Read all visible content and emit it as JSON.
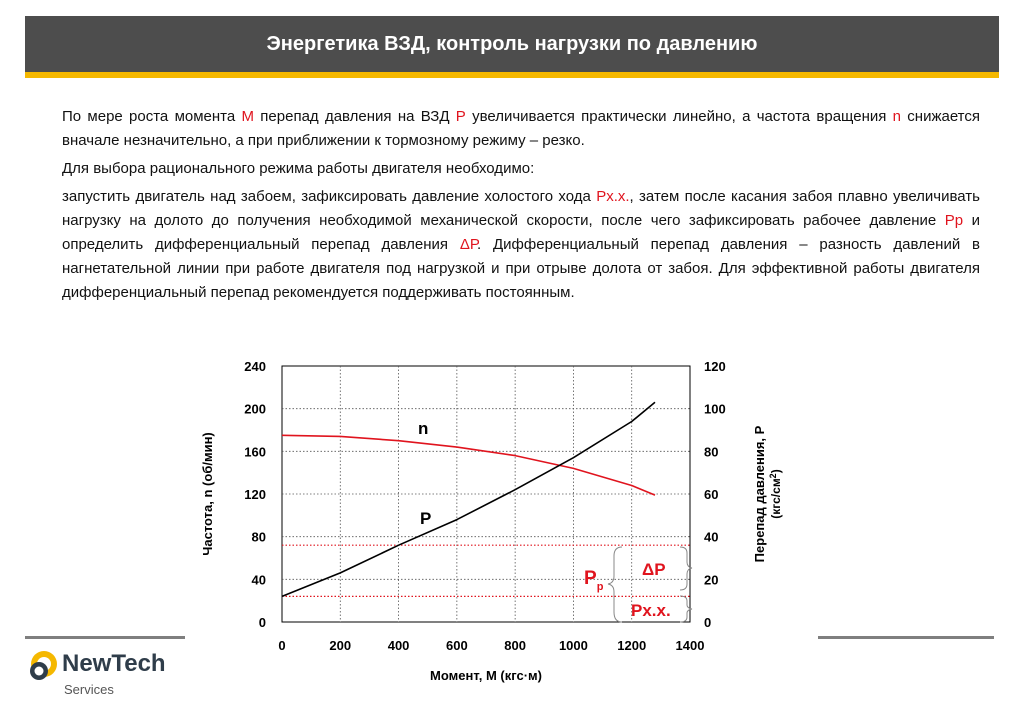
{
  "slide": {
    "title": "Энергетика ВЗД, контроль  нагрузки по давлению"
  },
  "body": {
    "p1": {
      "a": "По мере роста момента ",
      "b": "М",
      "c": " перепад давления на ВЗД ",
      "d": "Р",
      "e": " увеличивается практически линейно, а частота вращения ",
      "f": "n",
      "g": " снижается вначале незначительно, а при приближении к тормозному режиму – резко."
    },
    "p2": "Для выбора рационального режима работы двигателя необходимо:",
    "p3": {
      "a": "запустить двигатель над забоем, зафиксировать давление холостого хода ",
      "b": "Рх.х.",
      "c": ", затем после касания забоя плавно увеличивать нагрузку на долото до получения необходимой механической скорости, после чего зафиксировать рабочее давление ",
      "d": "Рр",
      "e": " и определить дифференциальный перепад давления ",
      "f": "ΔР",
      "g": ". Дифференциальный перепад давления – разность давлений в нагнетательной линии при работе двигателя под нагрузкой и при отрыве долота от забоя. Для эффективной работы двигателя дифференциальный перепад рекомендуется поддерживать постоянным."
    }
  },
  "logo": {
    "name": "NewTech",
    "sub": "Services"
  },
  "colors": {
    "title_bg": "#4d4d4d",
    "accent": "#f5b800",
    "red": "#e0141e"
  },
  "chart_data": {
    "type": "line",
    "xlabel": "Момент, М (кгс·м)",
    "ylabel_left": "Частота, n (об/мин)",
    "ylabel_right_line1": "Перепад давления, Р",
    "ylabel_right_line2": "(кгс/см",
    "ylabel_right_sup": "2",
    "ylabel_right_close": ")",
    "xlim": [
      0,
      1400
    ],
    "ylim_left": [
      0,
      240
    ],
    "ylim_right": [
      0,
      120
    ],
    "x_ticks": [
      "0",
      "200",
      "400",
      "600",
      "800",
      "1000",
      "1200",
      "1400"
    ],
    "y_left_ticks": [
      "0",
      "40",
      "80",
      "120",
      "160",
      "200",
      "240"
    ],
    "y_right_ticks": [
      "0",
      "20",
      "40",
      "60",
      "80",
      "100",
      "120"
    ],
    "grid": true,
    "series": [
      {
        "name": "n",
        "axis": "left",
        "color": "#e0141e",
        "x": [
          0,
          200,
          400,
          600,
          800,
          1000,
          1200,
          1280
        ],
        "y": [
          175,
          174,
          170,
          164,
          156,
          144,
          128,
          119
        ]
      },
      {
        "name": "P",
        "axis": "right",
        "color": "#000000",
        "x": [
          0,
          200,
          400,
          600,
          800,
          1000,
          1200,
          1280
        ],
        "y": [
          12,
          23,
          36,
          48,
          62,
          77,
          94,
          103
        ]
      }
    ],
    "reference_lines": [
      {
        "label": "Рр",
        "axis": "right",
        "value": 36
      },
      {
        "label": "Рх.х.",
        "axis": "right",
        "value": 12
      }
    ],
    "annotations": {
      "delta_p": "ΔP",
      "p_work_main": "P",
      "p_work_sub": "p",
      "p_idle": "Px.x."
    }
  }
}
